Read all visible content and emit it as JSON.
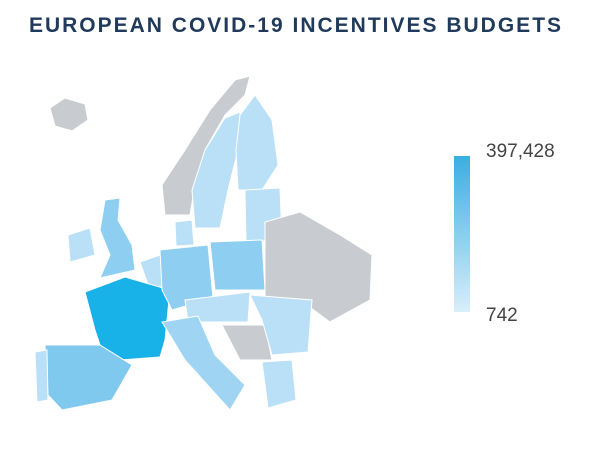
{
  "title": "EUROPEAN COVID-19 INCENTIVES BUDGETS",
  "legend": {
    "max": {
      "value": 397428,
      "label": "397,428"
    },
    "min": {
      "value": 742,
      "label": "742"
    },
    "color_low": "#d9eefb",
    "color_high": "#3aaee0"
  }
}
